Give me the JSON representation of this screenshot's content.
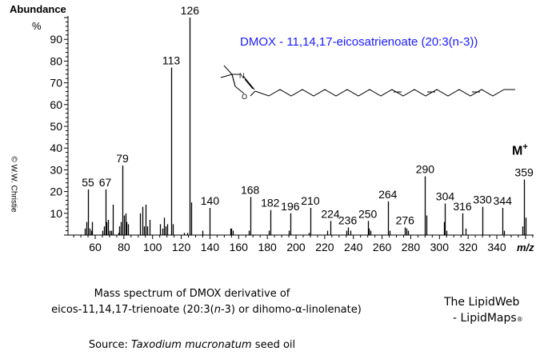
{
  "header": {
    "ylabel": "Abundance",
    "percent": "%"
  },
  "copyright": "© W.W. Christie",
  "title": "DMOX - 11,14,17-eicosatrienoate (20:3(n-3))",
  "molecular_ion": {
    "label": "M",
    "sup": "+"
  },
  "xlabel": "m/z",
  "caption": {
    "line1": "Mass spectrum of DMOX derivative of",
    "line2_a": "eicos-11,14,17-trienoate  (20:3(",
    "line2_n": "n",
    "line2_b": "-3) or dihomo-α-linolenate)",
    "source_label": "Source: ",
    "source_species": "Taxodium mucronatum",
    "source_rest": " seed oil"
  },
  "brand": {
    "line1": "The LipidWeb",
    "line2": "- LipidMaps",
    "reg": "®"
  },
  "colors": {
    "title": "#1a1aff",
    "bars": "#000000"
  },
  "chart_data": {
    "type": "bar",
    "title": "DMOX - 11,14,17-eicosatrienoate (20:3(n-3))",
    "xlabel": "m/z",
    "ylabel": "Abundance %",
    "xlim": [
      42,
      368
    ],
    "ylim": [
      0,
      100
    ],
    "xticks": [
      60,
      80,
      100,
      120,
      140,
      160,
      180,
      200,
      220,
      240,
      260,
      280,
      300,
      320,
      340
    ],
    "yticks": [
      10,
      20,
      30,
      40,
      50,
      60,
      70,
      80,
      90
    ],
    "grid": false,
    "labeled_peaks": [
      {
        "mz": 55,
        "abundance": 21
      },
      {
        "mz": 67,
        "abundance": 21
      },
      {
        "mz": 79,
        "abundance": 32
      },
      {
        "mz": 113,
        "abundance": 77
      },
      {
        "mz": 126,
        "abundance": 100
      },
      {
        "mz": 140,
        "abundance": 12.5
      },
      {
        "mz": 168,
        "abundance": 17.5
      },
      {
        "mz": 182,
        "abundance": 11.5
      },
      {
        "mz": 196,
        "abundance": 10
      },
      {
        "mz": 210,
        "abundance": 12.5
      },
      {
        "mz": 224,
        "abundance": 6.5
      },
      {
        "mz": 236,
        "abundance": 3.5
      },
      {
        "mz": 250,
        "abundance": 6.5
      },
      {
        "mz": 264,
        "abundance": 15.5
      },
      {
        "mz": 276,
        "abundance": 3.5
      },
      {
        "mz": 290,
        "abundance": 27
      },
      {
        "mz": 304,
        "abundance": 14.5
      },
      {
        "mz": 316,
        "abundance": 10
      },
      {
        "mz": 330,
        "abundance": 13
      },
      {
        "mz": 344,
        "abundance": 12.5
      },
      {
        "mz": 359,
        "abundance": 25.5
      }
    ],
    "minor_peaks": [
      {
        "mz": 53,
        "abundance": 3
      },
      {
        "mz": 54,
        "abundance": 6
      },
      {
        "mz": 56,
        "abundance": 3
      },
      {
        "mz": 57,
        "abundance": 2
      },
      {
        "mz": 58,
        "abundance": 6
      },
      {
        "mz": 65,
        "abundance": 2
      },
      {
        "mz": 66,
        "abundance": 4
      },
      {
        "mz": 68,
        "abundance": 6
      },
      {
        "mz": 69,
        "abundance": 7
      },
      {
        "mz": 70,
        "abundance": 2
      },
      {
        "mz": 71,
        "abundance": 2
      },
      {
        "mz": 72,
        "abundance": 14
      },
      {
        "mz": 76,
        "abundance": 1
      },
      {
        "mz": 77,
        "abundance": 4
      },
      {
        "mz": 78,
        "abundance": 6
      },
      {
        "mz": 80,
        "abundance": 9
      },
      {
        "mz": 81,
        "abundance": 10
      },
      {
        "mz": 82,
        "abundance": 6
      },
      {
        "mz": 83,
        "abundance": 5
      },
      {
        "mz": 91,
        "abundance": 10
      },
      {
        "mz": 93,
        "abundance": 13
      },
      {
        "mz": 94,
        "abundance": 4
      },
      {
        "mz": 95,
        "abundance": 14
      },
      {
        "mz": 96,
        "abundance": 4
      },
      {
        "mz": 98,
        "abundance": 7
      },
      {
        "mz": 105,
        "abundance": 5
      },
      {
        "mz": 107,
        "abundance": 3
      },
      {
        "mz": 108,
        "abundance": 8
      },
      {
        "mz": 109,
        "abundance": 4
      },
      {
        "mz": 110,
        "abundance": 5
      },
      {
        "mz": 114,
        "abundance": 5
      },
      {
        "mz": 122,
        "abundance": 1
      },
      {
        "mz": 124,
        "abundance": 1
      },
      {
        "mz": 127,
        "abundance": 15
      },
      {
        "mz": 135,
        "abundance": 2
      },
      {
        "mz": 154,
        "abundance": 3
      },
      {
        "mz": 155,
        "abundance": 3
      },
      {
        "mz": 156,
        "abundance": 2
      },
      {
        "mz": 167,
        "abundance": 2
      },
      {
        "mz": 181,
        "abundance": 2
      },
      {
        "mz": 195,
        "abundance": 2
      },
      {
        "mz": 209,
        "abundance": 1
      },
      {
        "mz": 222,
        "abundance": 2
      },
      {
        "mz": 235,
        "abundance": 2
      },
      {
        "mz": 238,
        "abundance": 2
      },
      {
        "mz": 251,
        "abundance": 3
      },
      {
        "mz": 252,
        "abundance": 2
      },
      {
        "mz": 265,
        "abundance": 2
      },
      {
        "mz": 277,
        "abundance": 3
      },
      {
        "mz": 278,
        "abundance": 2
      },
      {
        "mz": 291,
        "abundance": 9
      },
      {
        "mz": 303,
        "abundance": 6
      },
      {
        "mz": 305,
        "abundance": 2
      },
      {
        "mz": 318,
        "abundance": 3
      },
      {
        "mz": 345,
        "abundance": 2
      },
      {
        "mz": 358,
        "abundance": 4
      },
      {
        "mz": 360,
        "abundance": 8
      }
    ]
  }
}
